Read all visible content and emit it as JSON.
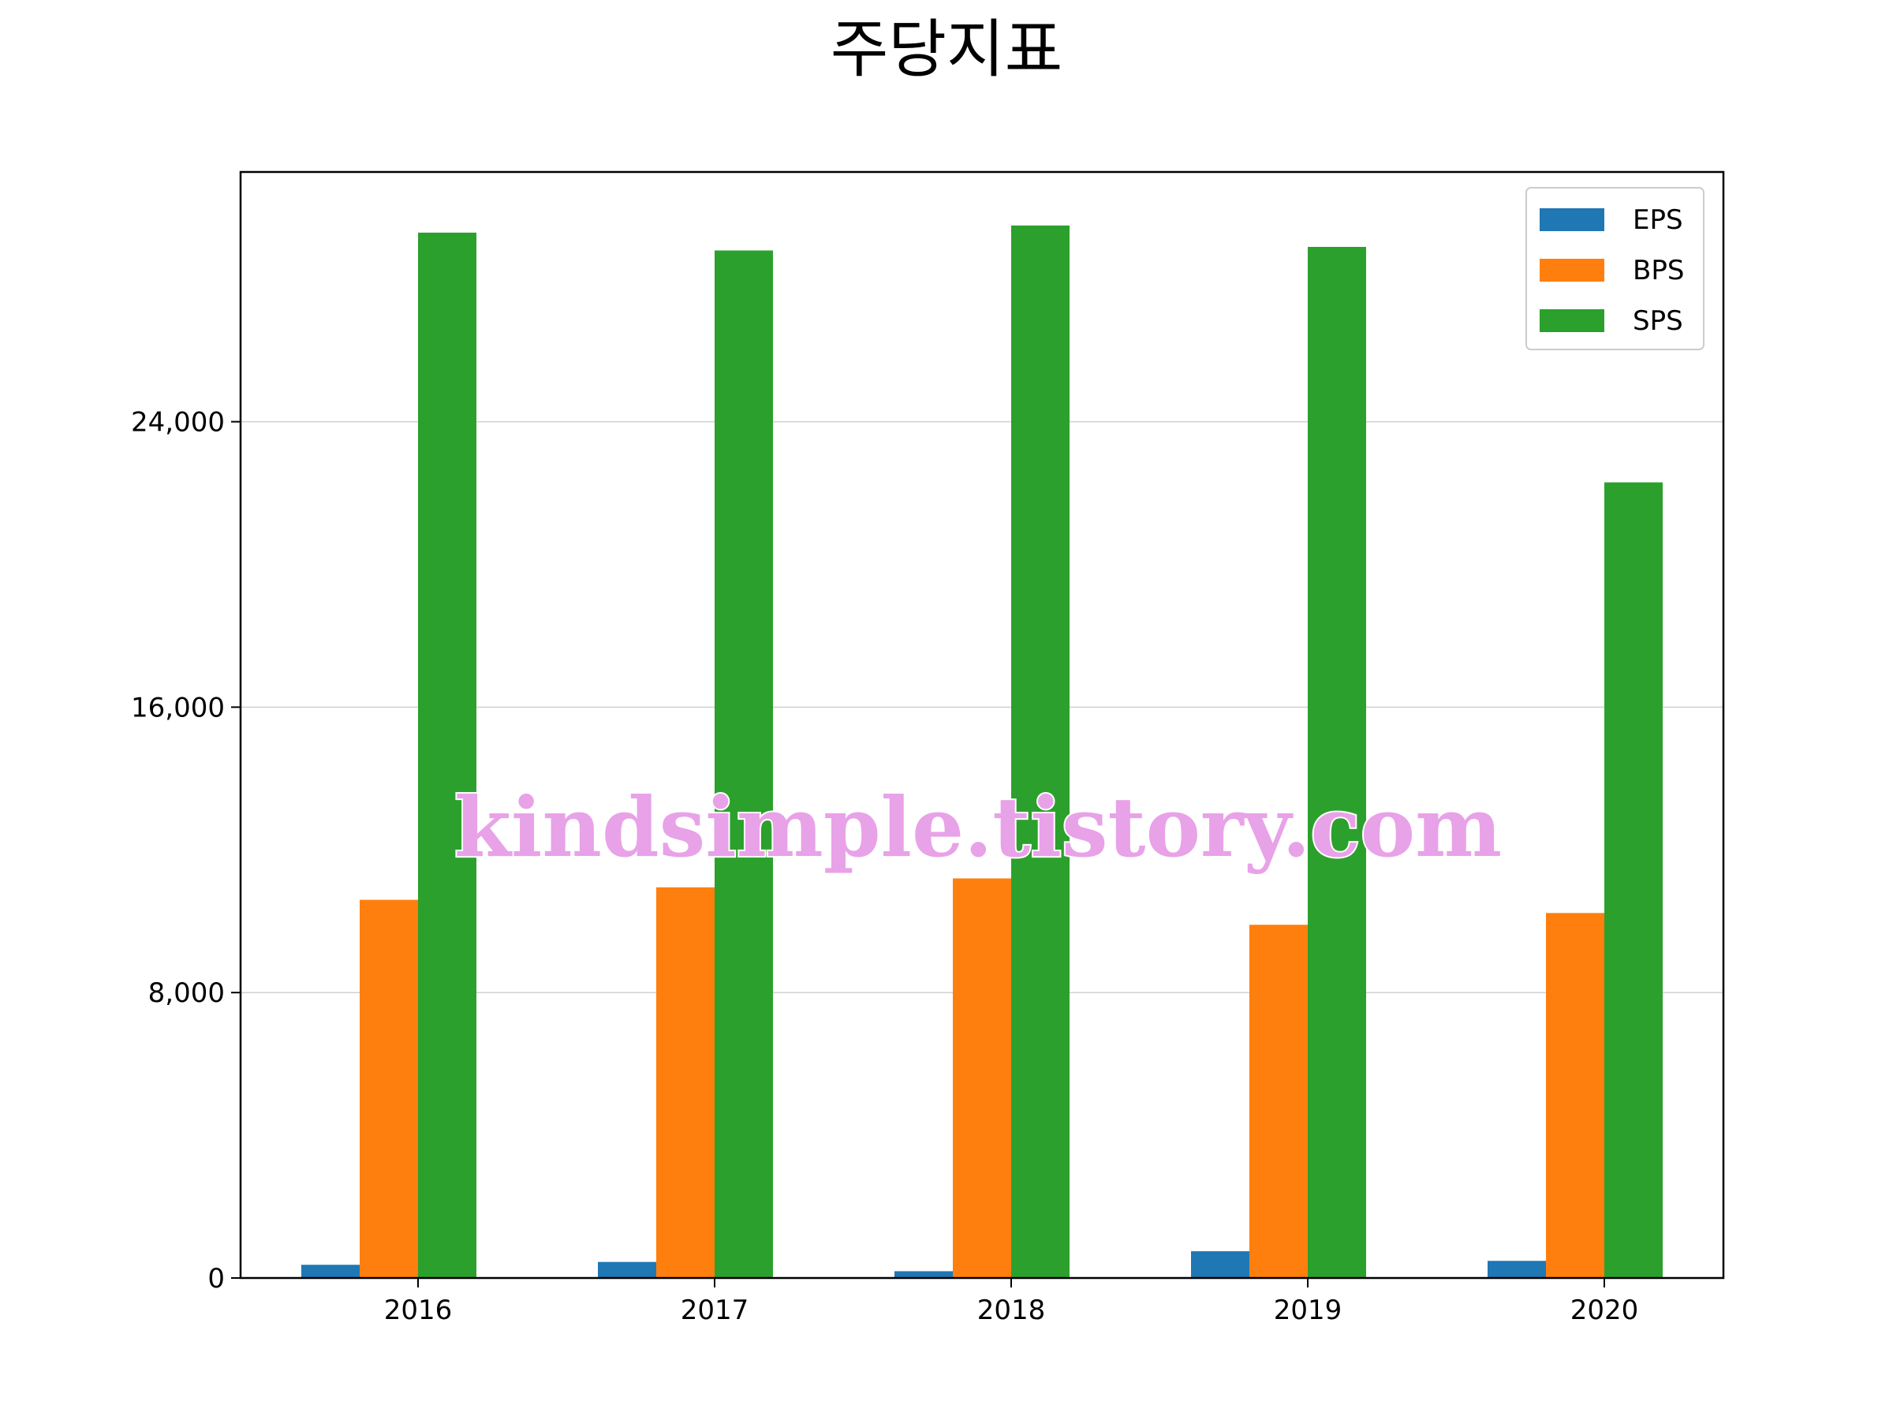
{
  "title": "주당지표",
  "watermark": "kindsimple.tistory.com",
  "chart_data": {
    "type": "bar",
    "title": "주당지표",
    "xlabel": "",
    "ylabel": "",
    "categories": [
      "2016",
      "2017",
      "2018",
      "2019",
      "2020"
    ],
    "series": [
      {
        "name": "EPS",
        "color": "#1f77b4",
        "values": [
          370,
          450,
          190,
          750,
          480
        ]
      },
      {
        "name": "BPS",
        "color": "#ff7f0e",
        "values": [
          10600,
          10950,
          11200,
          9900,
          10230
        ]
      },
      {
        "name": "SPS",
        "color": "#2ca02c",
        "values": [
          29300,
          28800,
          29500,
          28900,
          22300
        ]
      }
    ],
    "ylim": [
      0,
      31000
    ],
    "yticks": [
      0,
      8000,
      16000,
      24000
    ],
    "ytick_labels": [
      "0",
      "8,000",
      "16,000",
      "24,000"
    ],
    "grid": "horizontal",
    "legend": "top-right"
  }
}
